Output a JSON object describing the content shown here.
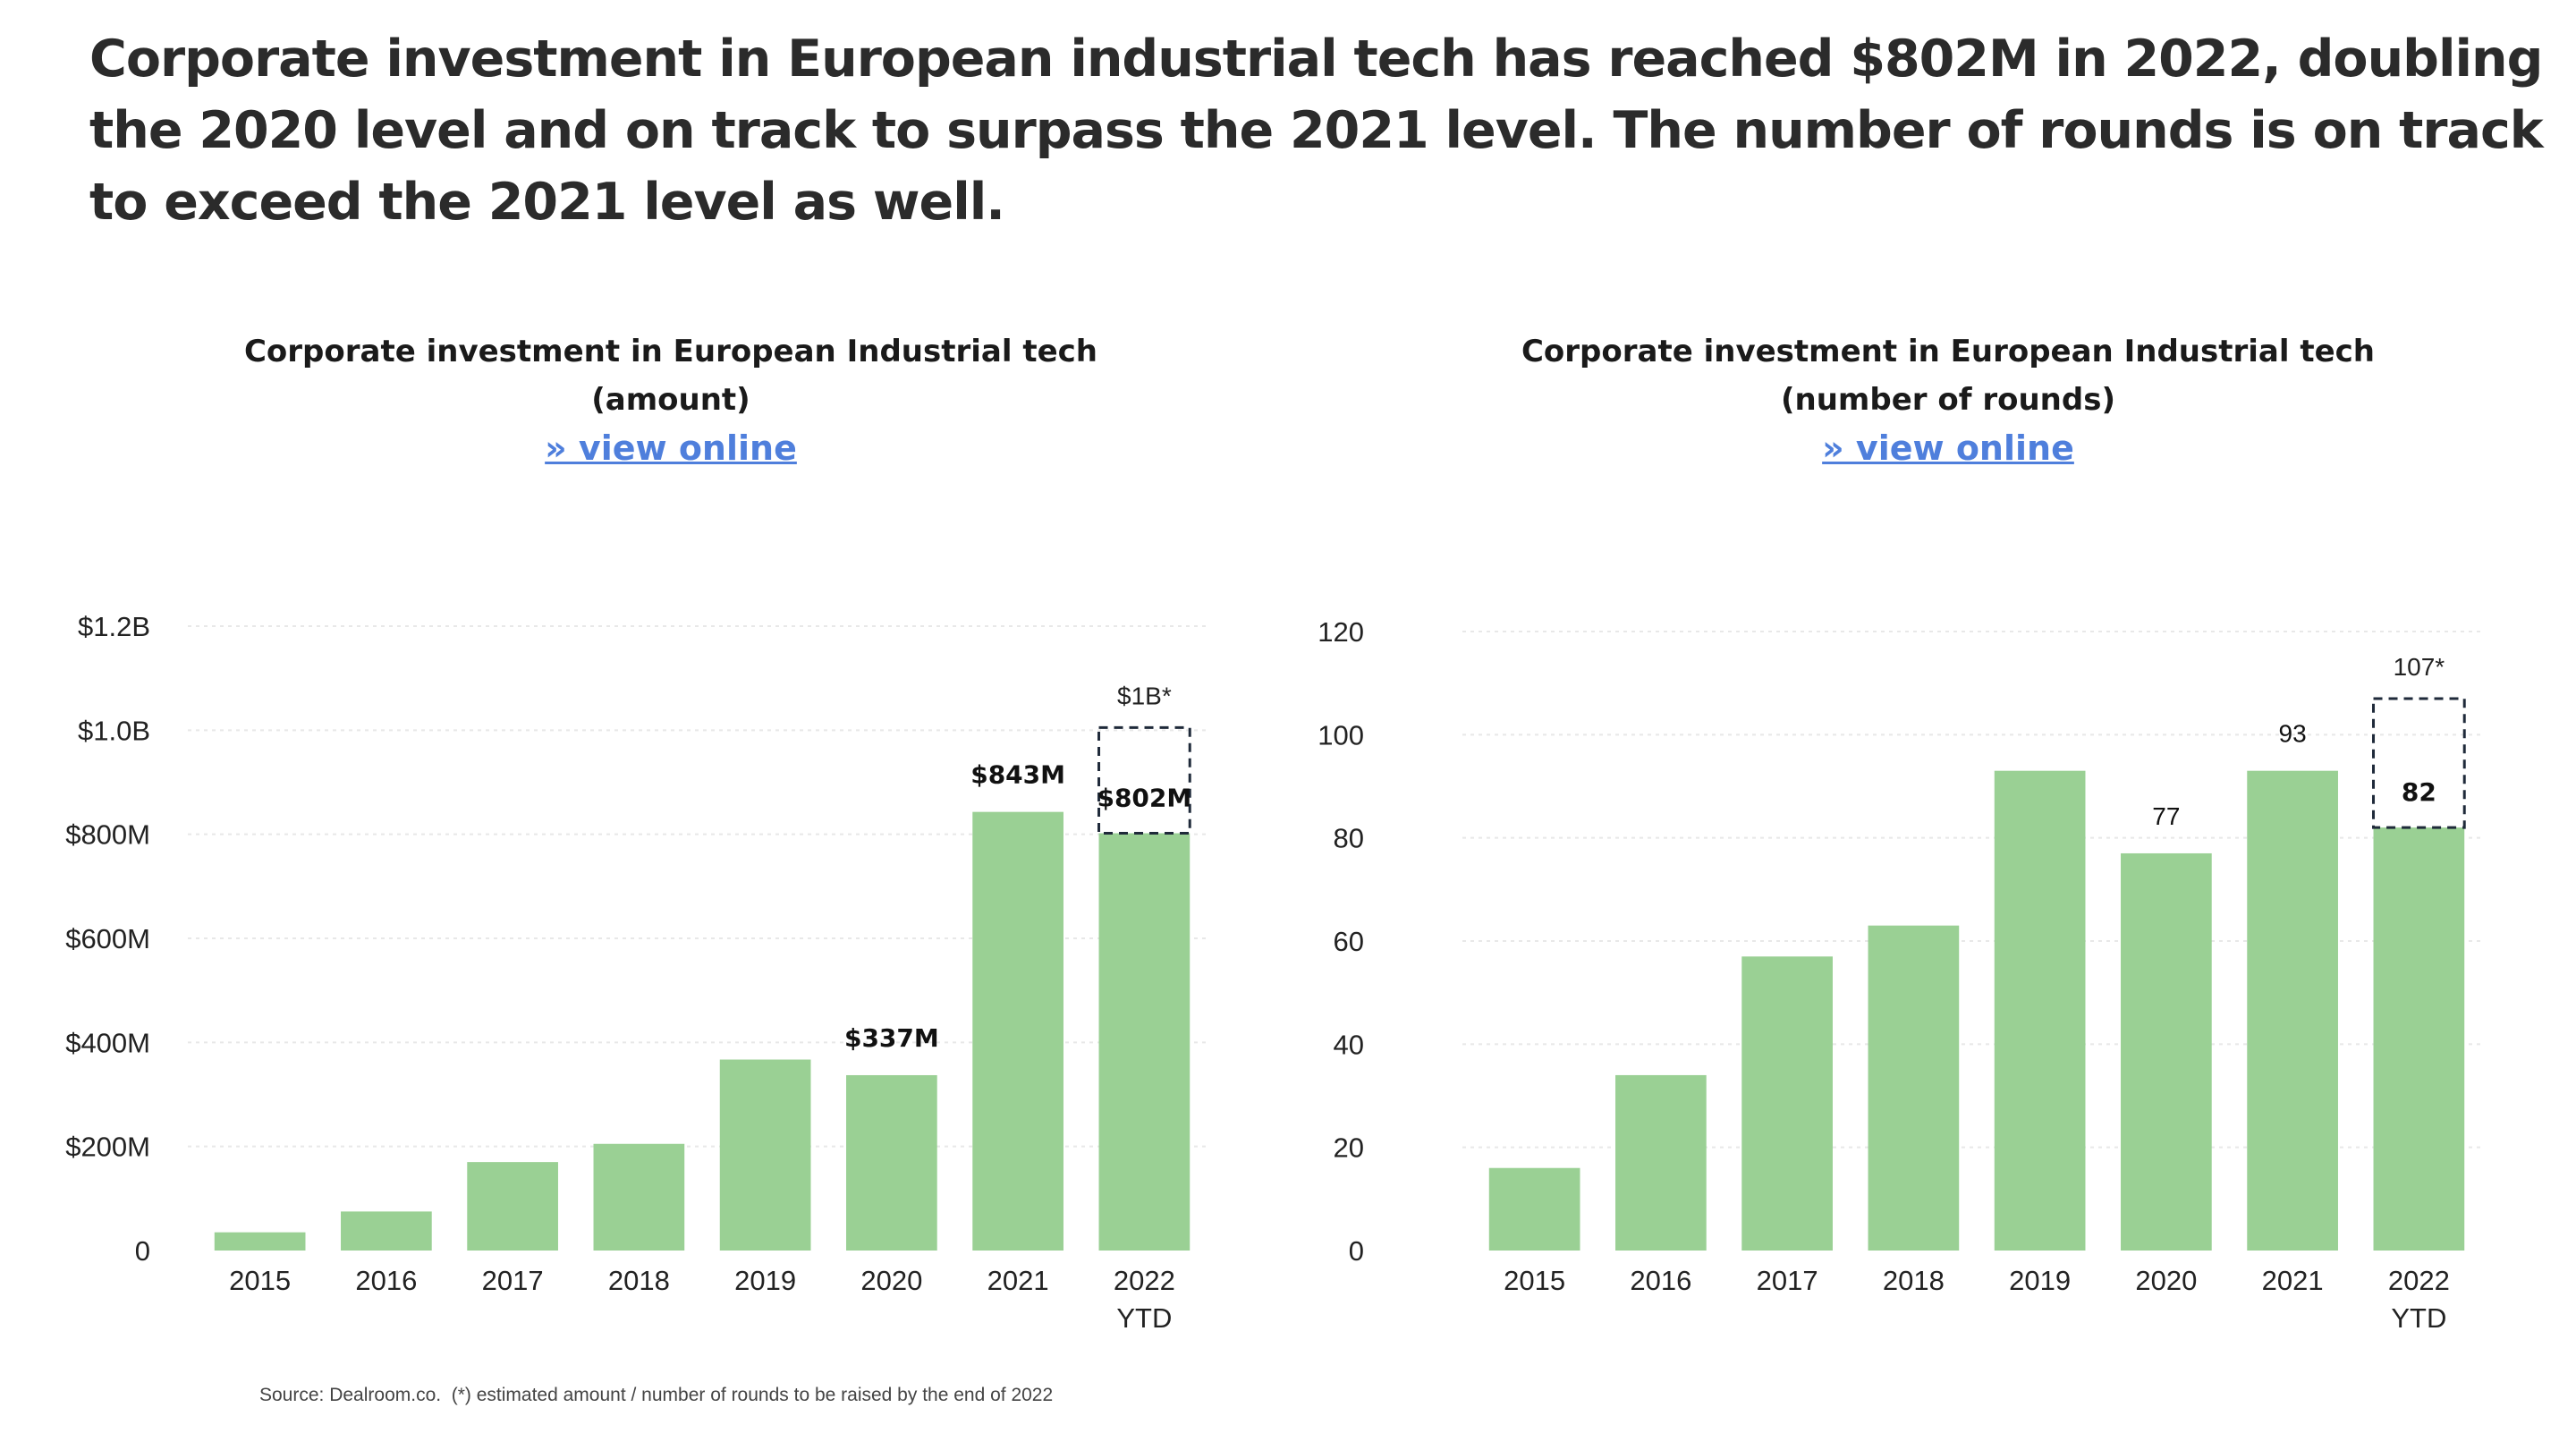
{
  "headline": "Corporate investment in European industrial tech has reached $802M in 2022, doubling the 2020 level and on track to surpass the 2021 level. The number of rounds is on track to exceed the 2021 level as well.",
  "source": "Source: Dealroom.co.  (*) estimated amount / number of rounds to be raised by the end of 2022",
  "colors": {
    "bar": "#9ad094",
    "gridline": "#e8e8e8",
    "link": "#4f7fdc",
    "estimate_outline": "#1f2a3a"
  },
  "charts": [
    {
      "title_line1": "Corporate investment in European Industrial tech",
      "title_line2": "(amount)",
      "link_text": "» view online"
    },
    {
      "title_line1": "Corporate investment in European Industrial tech",
      "title_line2": "(number of rounds)",
      "link_text": "» view online"
    }
  ],
  "chart_data": [
    {
      "type": "bar",
      "title": "Corporate investment in European Industrial tech (amount)",
      "categories": [
        "2015",
        "2016",
        "2017",
        "2018",
        "2019",
        "2020",
        "2021",
        "2022\nYTD"
      ],
      "values": [
        35,
        75,
        170,
        205,
        367,
        337,
        843,
        802
      ],
      "unit": "$M",
      "estimate": {
        "category_index": 7,
        "value": 1005,
        "label": "$1B*"
      },
      "data_labels": [
        {
          "index": 5,
          "label": "$337M",
          "bold": true
        },
        {
          "index": 6,
          "label": "$843M",
          "bold": true
        },
        {
          "index": 7,
          "label": "$802M",
          "bold": true
        }
      ],
      "yticks": [
        0,
        200,
        400,
        600,
        800,
        1000,
        1200
      ],
      "ytick_labels": [
        "0",
        "$200M",
        "$400M",
        "$600M",
        "$800M",
        "$1.0B",
        "$1.2B"
      ],
      "ylim": [
        0,
        1200
      ],
      "grid": true,
      "xlabel": "",
      "ylabel": ""
    },
    {
      "type": "bar",
      "title": "Corporate investment in European Industrial tech (number of rounds)",
      "categories": [
        "2015",
        "2016",
        "2017",
        "2018",
        "2019",
        "2020",
        "2021",
        "2022\nYTD"
      ],
      "values": [
        16,
        34,
        57,
        63,
        93,
        77,
        93,
        82
      ],
      "estimate": {
        "category_index": 7,
        "value": 107,
        "label": "107*"
      },
      "data_labels": [
        {
          "index": 5,
          "label": "77",
          "bold": false
        },
        {
          "index": 6,
          "label": "93",
          "bold": false
        },
        {
          "index": 7,
          "label": "82",
          "bold": true
        }
      ],
      "yticks": [
        0,
        20,
        40,
        60,
        80,
        100,
        120
      ],
      "ytick_labels": [
        "0",
        "20",
        "40",
        "60",
        "80",
        "100",
        "120"
      ],
      "ylim": [
        0,
        120
      ],
      "grid": true,
      "xlabel": "",
      "ylabel": ""
    }
  ]
}
